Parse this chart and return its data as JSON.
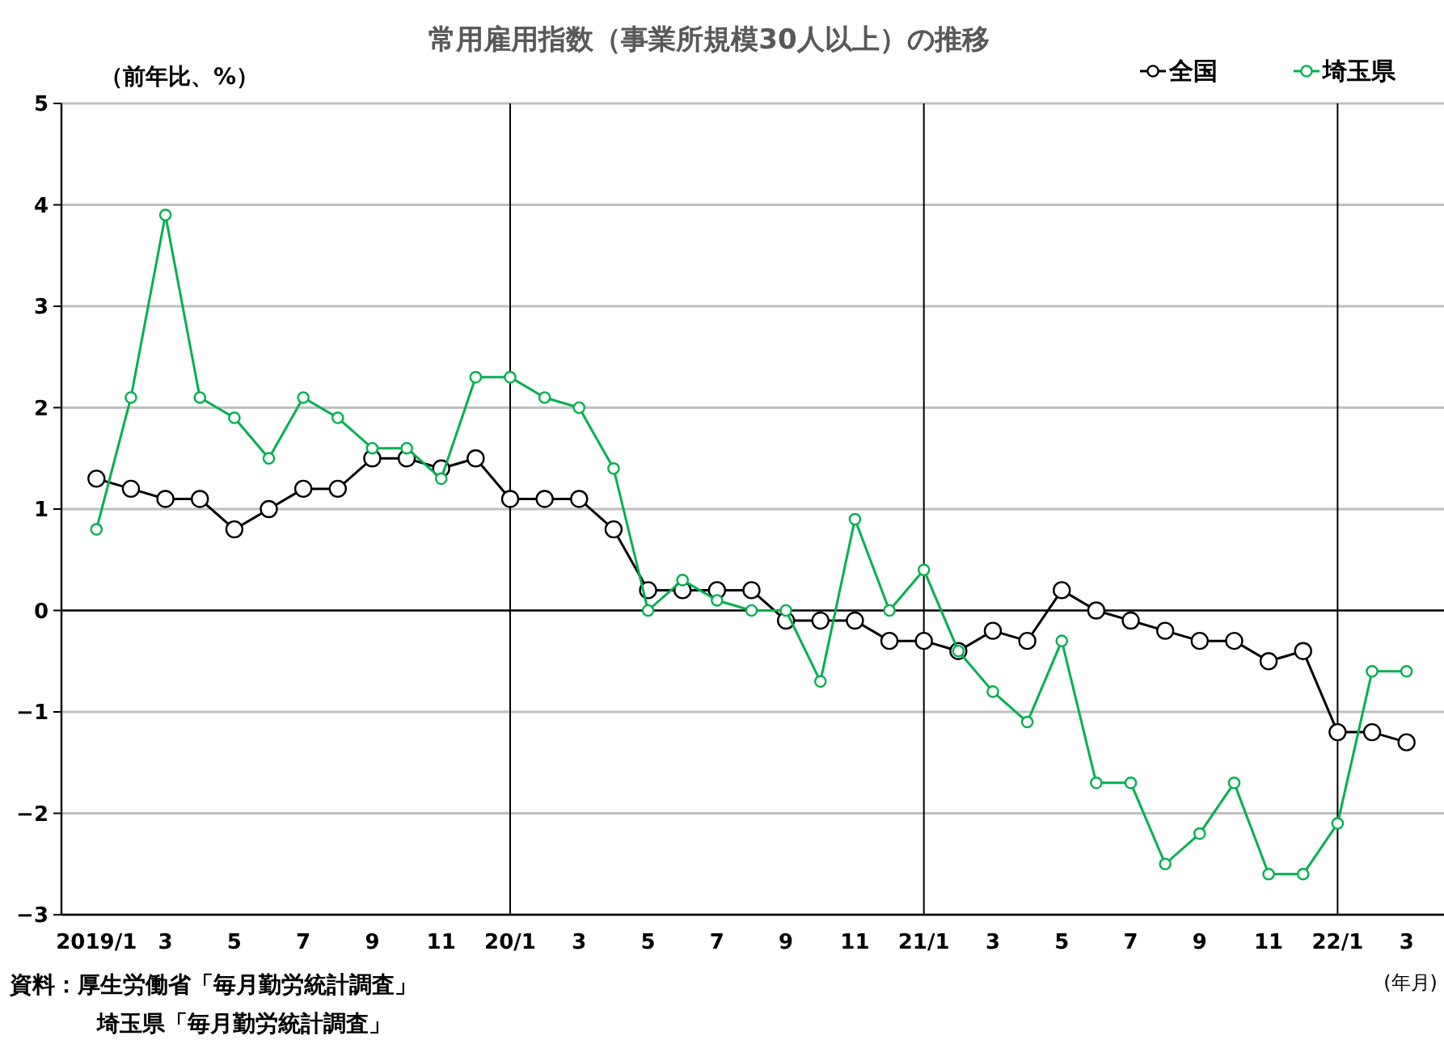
{
  "chart_data": {
    "type": "line",
    "title": "常用雇用指数（事業所規模30人以上）の推移",
    "ylabel": "（前年比、%）",
    "xlabel": "(年月)",
    "annotations": [
      "資料：厚生労働省「毎月勤労統計調査」",
      "埼玉県「毎月勤労統計調査」"
    ],
    "categories": [
      "2019/1",
      null,
      "3",
      null,
      "5",
      null,
      "7",
      null,
      "9",
      null,
      "11",
      null,
      "20/1",
      null,
      "3",
      null,
      "5",
      null,
      "7",
      null,
      "9",
      null,
      "11",
      null,
      "21/1",
      null,
      "3",
      null,
      "5",
      null,
      "7",
      null,
      "9",
      null,
      "11",
      null,
      "22/1",
      null,
      "3"
    ],
    "series": [
      {
        "name": "全国",
        "color": "#000000",
        "values": [
          1.3,
          1.2,
          1.1,
          1.1,
          0.8,
          1.0,
          1.2,
          1.2,
          1.5,
          1.5,
          1.4,
          1.5,
          1.1,
          1.1,
          1.1,
          0.8,
          0.2,
          0.2,
          0.2,
          0.2,
          -0.1,
          -0.1,
          -0.1,
          -0.3,
          -0.3,
          -0.4,
          -0.2,
          -0.3,
          0.2,
          0.0,
          -0.1,
          -0.2,
          -0.3,
          -0.3,
          -0.5,
          -0.4,
          -1.2,
          -1.2,
          -1.3
        ]
      },
      {
        "name": "埼玉県",
        "color": "#00b050",
        "values": [
          0.8,
          2.1,
          3.9,
          2.1,
          1.9,
          1.5,
          2.1,
          1.9,
          1.6,
          1.6,
          1.3,
          2.3,
          2.3,
          2.1,
          2.0,
          1.4,
          0.0,
          0.3,
          0.1,
          0.0,
          0.0,
          -0.7,
          0.9,
          0.0,
          0.4,
          -0.4,
          -0.8,
          -1.1,
          -0.3,
          -1.7,
          -1.7,
          -2.5,
          -2.2,
          -1.7,
          -2.6,
          -2.6,
          -2.1,
          -0.6,
          -0.6
        ]
      }
    ],
    "ylim": [
      -3,
      5
    ],
    "yticks": [
      -3,
      -2,
      -1,
      0,
      1,
      2,
      3,
      4,
      5
    ],
    "grid": "y",
    "legend": "top right",
    "marker": "circle",
    "line_style": "solid",
    "ref_lines": [
      {
        "axis": "x",
        "value": "20/1",
        "color": "#000000"
      },
      {
        "axis": "x",
        "value": "21/1",
        "color": "#000000"
      },
      {
        "axis": "x",
        "value": "22/1",
        "color": "#000000"
      }
    ]
  }
}
